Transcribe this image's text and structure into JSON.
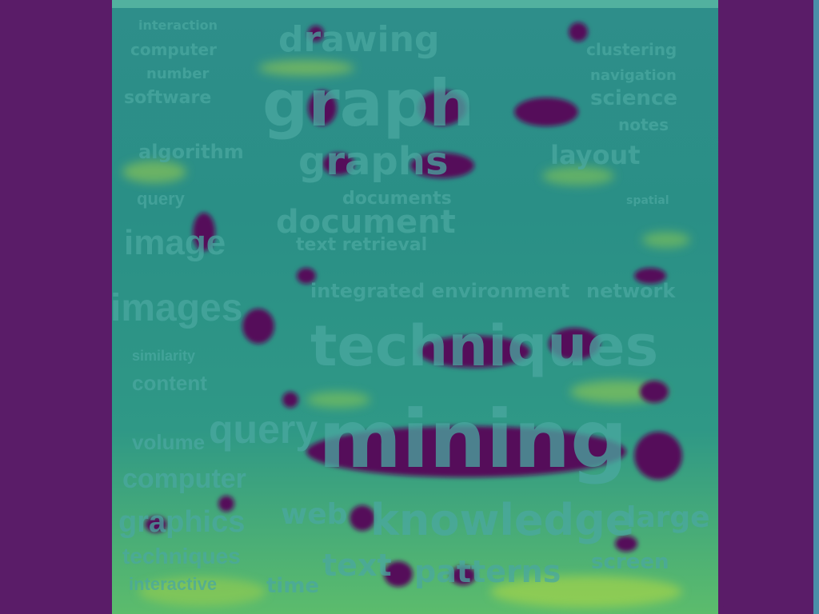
{
  "words": [
    {
      "text": "drawing"
    },
    {
      "text": "graph"
    },
    {
      "text": "graphs"
    },
    {
      "text": "documents"
    },
    {
      "text": "document"
    },
    {
      "text": "text retrieval"
    },
    {
      "text": "techniques"
    },
    {
      "text": "mining"
    },
    {
      "text": "knowledge"
    },
    {
      "text": "web"
    },
    {
      "text": "text"
    },
    {
      "text": "large"
    },
    {
      "text": "science"
    },
    {
      "text": "layout"
    },
    {
      "text": "algorithm"
    },
    {
      "text": "software"
    },
    {
      "text": "number"
    },
    {
      "text": "computer"
    },
    {
      "text": "interaction"
    },
    {
      "text": "clustering"
    },
    {
      "text": "navigation"
    },
    {
      "text": "notes"
    },
    {
      "text": "spatial"
    },
    {
      "text": "query"
    },
    {
      "text": "image"
    },
    {
      "text": "images"
    },
    {
      "text": "similarity"
    },
    {
      "text": "content"
    },
    {
      "text": "volume"
    },
    {
      "text": "computer"
    },
    {
      "text": "graphics"
    },
    {
      "text": "techniques"
    },
    {
      "text": "interactive"
    },
    {
      "text": "query"
    },
    {
      "text": "integrated environment"
    },
    {
      "text": "network"
    },
    {
      "text": "patterns"
    },
    {
      "text": "screen"
    },
    {
      "text": "time"
    }
  ],
  "colors": {
    "background": "#5a1c68",
    "field": "#2e8e8a",
    "highlight": "#9fd04a",
    "hotspot": "#540f5a",
    "word": "#4aa8a0"
  }
}
